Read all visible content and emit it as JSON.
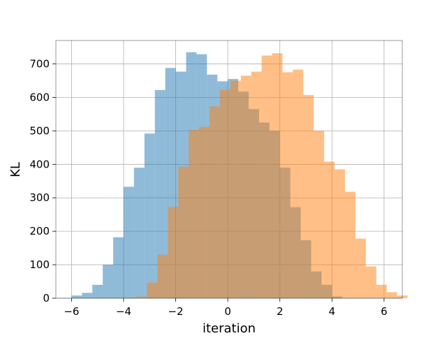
{
  "chart_data": {
    "type": "histogram",
    "title": "",
    "xlabel": "iteration",
    "ylabel": "KL",
    "xlim": [
      -6.6,
      6.7
    ],
    "ylim": [
      0,
      770
    ],
    "xticks": [
      -6,
      -4,
      -2,
      0,
      2,
      4,
      6
    ],
    "xtick_labels": [
      "−6",
      "−4",
      "−2",
      "0",
      "2",
      "4",
      "6"
    ],
    "yticks": [
      0,
      100,
      200,
      300,
      400,
      500,
      600,
      700
    ],
    "ytick_labels": [
      "0",
      "100",
      "200",
      "300",
      "400",
      "500",
      "600",
      "700"
    ],
    "grid": true,
    "alpha": 0.5,
    "series": [
      {
        "color": "#1f77b4",
        "bin_start": -6.0,
        "bin_width": 0.4,
        "values": [
          8,
          16,
          40,
          100,
          182,
          333,
          390,
          492,
          622,
          688,
          677,
          735,
          729,
          668,
          648,
          655,
          617,
          565,
          525,
          500,
          390,
          272,
          173,
          80,
          40,
          5
        ]
      },
      {
        "color": "#ff7f0e",
        "bin_start": -3.5,
        "bin_width": 0.4,
        "values": [
          5,
          47,
          130,
          273,
          393,
          503,
          512,
          573,
          622,
          650,
          665,
          677,
          725,
          732,
          675,
          683,
          607,
          500,
          408,
          385,
          318,
          178,
          95,
          40,
          18,
          8
        ]
      }
    ]
  }
}
